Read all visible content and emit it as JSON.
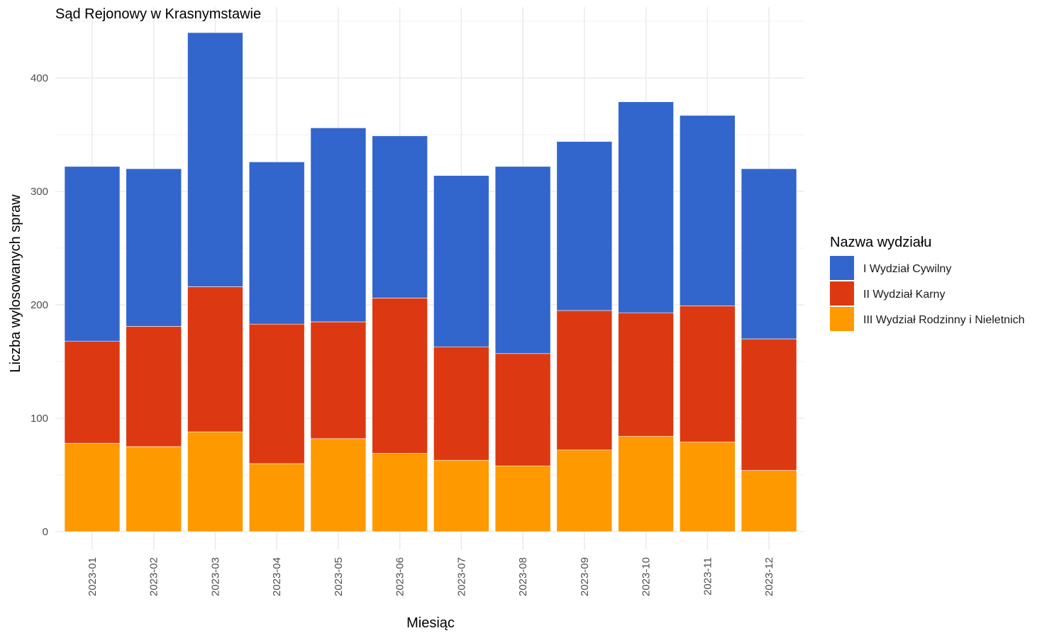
{
  "chart_data": {
    "type": "bar",
    "stacked": true,
    "title": "Sąd Rejonowy w Krasnymstawie",
    "xlabel": "Miesiąc",
    "ylabel": "Liczba wylosowanych spraw",
    "ylim": [
      0,
      440
    ],
    "yticks": [
      0,
      100,
      200,
      300,
      400
    ],
    "grid": true,
    "legend_title": "Nazwa wydziału",
    "legend_position": "right",
    "categories": [
      "2023-01",
      "2023-02",
      "2023-03",
      "2023-04",
      "2023-05",
      "2023-06",
      "2023-07",
      "2023-08",
      "2023-09",
      "2023-10",
      "2023-11",
      "2023-12"
    ],
    "series": [
      {
        "name": "III Wydział Rodzinny i Nieletnich",
        "color": "#FF9900",
        "values": [
          78,
          75,
          88,
          60,
          82,
          69,
          63,
          58,
          72,
          84,
          79,
          54
        ]
      },
      {
        "name": "II Wydział Karny",
        "color": "#DC3912",
        "values": [
          90,
          106,
          128,
          123,
          103,
          137,
          100,
          99,
          123,
          109,
          120,
          116
        ]
      },
      {
        "name": "I Wydział Cywilny",
        "color": "#3366CC",
        "values": [
          154,
          139,
          224,
          143,
          171,
          143,
          151,
          165,
          149,
          186,
          168,
          150
        ]
      }
    ],
    "legend_order": [
      "I Wydział Cywilny",
      "II Wydział Karny",
      "III Wydział Rodzinny i Nieletnich"
    ]
  }
}
